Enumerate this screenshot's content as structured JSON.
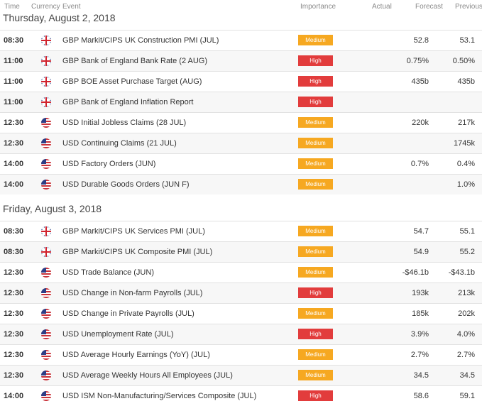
{
  "columns": {
    "time": "Time",
    "currency": "Currency",
    "event": "Event",
    "importance": "Importance",
    "actual": "Actual",
    "forecast": "Forecast",
    "previous": "Previous"
  },
  "importance_colors": {
    "Medium": "#f6a821",
    "High": "#e23c3c"
  },
  "days": [
    {
      "title": "Thursday, August 2, 2018",
      "rows": [
        {
          "time": "08:30",
          "flag": "gb-flag-icon",
          "event": "GBP Markit/CIPS UK Construction PMI (JUL)",
          "importance": "Medium",
          "actual": "",
          "forecast": "52.8",
          "previous": "53.1"
        },
        {
          "time": "11:00",
          "flag": "gb-flag-icon",
          "event": "GBP Bank of England Bank Rate (2 AUG)",
          "importance": "High",
          "actual": "",
          "forecast": "0.75%",
          "previous": "0.50%"
        },
        {
          "time": "11:00",
          "flag": "gb-flag-icon",
          "event": "GBP BOE Asset Purchase Target (AUG)",
          "importance": "High",
          "actual": "",
          "forecast": "435b",
          "previous": "435b"
        },
        {
          "time": "11:00",
          "flag": "gb-flag-icon",
          "event": "GBP Bank of England Inflation Report",
          "importance": "High",
          "actual": "",
          "forecast": "",
          "previous": ""
        },
        {
          "time": "12:30",
          "flag": "us-flag-icon",
          "event": "USD Initial Jobless Claims (28 JUL)",
          "importance": "Medium",
          "actual": "",
          "forecast": "220k",
          "previous": "217k"
        },
        {
          "time": "12:30",
          "flag": "us-flag-icon",
          "event": "USD Continuing Claims (21 JUL)",
          "importance": "Medium",
          "actual": "",
          "forecast": "",
          "previous": "1745k"
        },
        {
          "time": "14:00",
          "flag": "us-flag-icon",
          "event": "USD Factory Orders (JUN)",
          "importance": "Medium",
          "actual": "",
          "forecast": "0.7%",
          "previous": "0.4%"
        },
        {
          "time": "14:00",
          "flag": "us-flag-icon",
          "event": "USD Durable Goods Orders (JUN F)",
          "importance": "Medium",
          "actual": "",
          "forecast": "",
          "previous": "1.0%"
        }
      ]
    },
    {
      "title": "Friday, August 3, 2018",
      "rows": [
        {
          "time": "08:30",
          "flag": "gb-flag-icon",
          "event": "GBP Markit/CIPS UK Services PMI (JUL)",
          "importance": "Medium",
          "actual": "",
          "forecast": "54.7",
          "previous": "55.1"
        },
        {
          "time": "08:30",
          "flag": "gb-flag-icon",
          "event": "GBP Markit/CIPS UK Composite PMI (JUL)",
          "importance": "Medium",
          "actual": "",
          "forecast": "54.9",
          "previous": "55.2"
        },
        {
          "time": "12:30",
          "flag": "us-flag-icon",
          "event": "USD Trade Balance (JUN)",
          "importance": "Medium",
          "actual": "",
          "forecast": "-$46.1b",
          "previous": "-$43.1b"
        },
        {
          "time": "12:30",
          "flag": "us-flag-icon",
          "event": "USD Change in Non-farm Payrolls (JUL)",
          "importance": "High",
          "actual": "",
          "forecast": "193k",
          "previous": "213k"
        },
        {
          "time": "12:30",
          "flag": "us-flag-icon",
          "event": "USD Change in Private Payrolls (JUL)",
          "importance": "Medium",
          "actual": "",
          "forecast": "185k",
          "previous": "202k"
        },
        {
          "time": "12:30",
          "flag": "us-flag-icon",
          "event": "USD Unemployment Rate (JUL)",
          "importance": "High",
          "actual": "",
          "forecast": "3.9%",
          "previous": "4.0%"
        },
        {
          "time": "12:30",
          "flag": "us-flag-icon",
          "event": "USD Average Hourly Earnings (YoY) (JUL)",
          "importance": "Medium",
          "actual": "",
          "forecast": "2.7%",
          "previous": "2.7%"
        },
        {
          "time": "12:30",
          "flag": "us-flag-icon",
          "event": "USD Average Weekly Hours All Employees (JUL)",
          "importance": "Medium",
          "actual": "",
          "forecast": "34.5",
          "previous": "34.5"
        },
        {
          "time": "14:00",
          "flag": "us-flag-icon",
          "event": "USD ISM Non-Manufacturing/Services Composite (JUL)",
          "importance": "High",
          "actual": "",
          "forecast": "58.6",
          "previous": "59.1"
        }
      ]
    }
  ]
}
